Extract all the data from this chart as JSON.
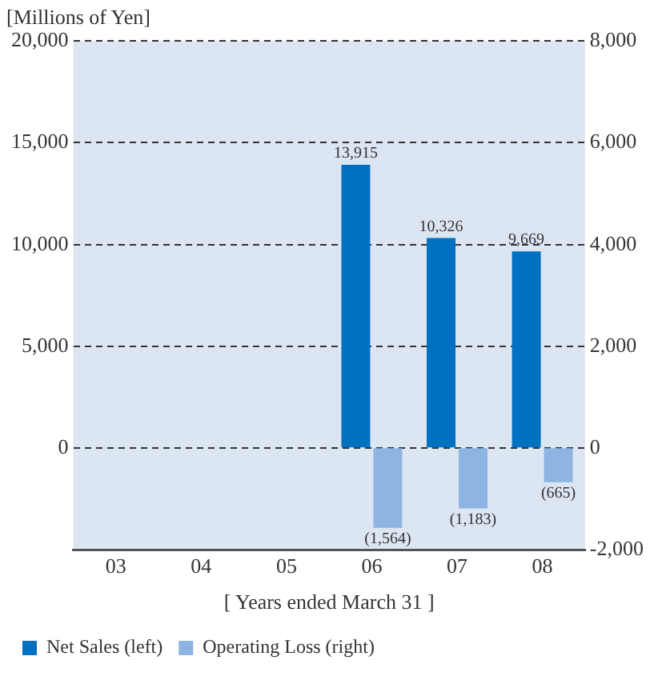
{
  "chart_data": {
    "type": "bar",
    "title": "[Millions of Yen]",
    "xlabel": "[ Years ended March 31 ]",
    "categories": [
      "03",
      "04",
      "05",
      "06",
      "07",
      "08"
    ],
    "series": [
      {
        "name": "Net Sales (left)",
        "color": "#0070c0",
        "values": [
          null,
          null,
          null,
          13915,
          10326,
          9669
        ],
        "value_labels": [
          null,
          null,
          null,
          "13,915",
          "10,326",
          "9,669"
        ]
      },
      {
        "name": "Operating Loss (right)",
        "color": "#8db4e2",
        "axis": "y2",
        "values": [
          null,
          null,
          null,
          -1564,
          -1183,
          -665
        ],
        "value_labels": [
          null,
          null,
          null,
          "(1,564)",
          "(1,183)",
          "(665)"
        ]
      }
    ],
    "ylim": [
      -5000,
      20000
    ],
    "yticks": [
      {
        "value": 0,
        "label": "0"
      },
      {
        "value": 5000,
        "label": "5,000"
      },
      {
        "value": 10000,
        "label": "10,000"
      },
      {
        "value": 15000,
        "label": "15,000"
      },
      {
        "value": 20000,
        "label": "20,000"
      }
    ],
    "y2lim": [
      -2000,
      8000
    ],
    "y2ticks": [
      {
        "value": -2000,
        "label": "-2,000"
      },
      {
        "value": 0,
        "label": "0"
      },
      {
        "value": 2000,
        "label": "2,000"
      },
      {
        "value": 4000,
        "label": "4,000"
      },
      {
        "value": 6000,
        "label": "6,000"
      },
      {
        "value": 8000,
        "label": "8,000"
      }
    ],
    "grid": "y",
    "legend": "bottom left"
  }
}
